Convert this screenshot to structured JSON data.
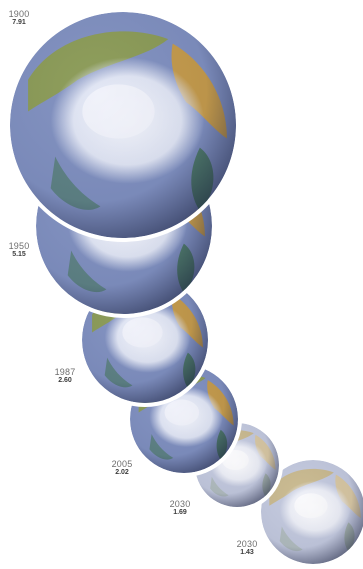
{
  "globes": [
    {
      "year": "1900",
      "value": "7.91",
      "palette": "earth"
    },
    {
      "year": "1950",
      "value": "5.15",
      "palette": "earth"
    },
    {
      "year": "1987",
      "value": "2.60",
      "palette": "earth"
    },
    {
      "year": "2005",
      "value": "2.02",
      "palette": "earth"
    },
    {
      "year": "2030",
      "value": "1.69",
      "palette": "pale"
    },
    {
      "year": "2030",
      "value": "1.43",
      "palette": "pale"
    }
  ]
}
